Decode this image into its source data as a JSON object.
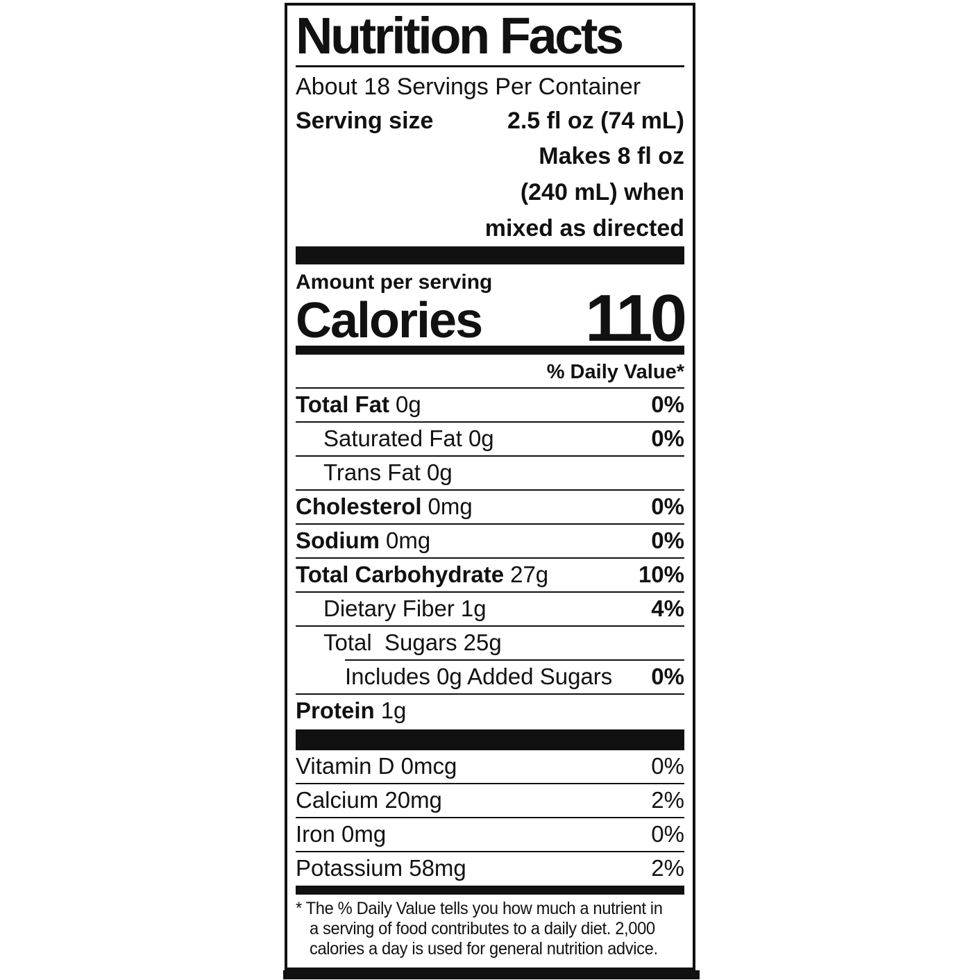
{
  "colors": {
    "ink": "#111111",
    "background": "#ffffff"
  },
  "label": {
    "title": "Nutrition Facts",
    "servings_per_container": "About 18 Servings Per Container",
    "serving_size_label": "Serving size",
    "serving_size_value": "2.5 fl oz (74 mL)",
    "serving_note_lines": [
      "Makes 8 fl oz",
      "(240 mL) when",
      "mixed as directed"
    ],
    "amount_per_serving": "Amount per serving",
    "calories_label": "Calories",
    "calories_value": "110",
    "daily_value_header": "% Daily Value*",
    "nutrient_rows": [
      {
        "name": "Total Fat",
        "amount": "0g",
        "percent": "0%"
      },
      {
        "name": "Saturated Fat",
        "amount": "0g",
        "percent": "0%"
      },
      {
        "name": "Trans Fat",
        "amount": "0g",
        "percent": ""
      },
      {
        "name": "Cholesterol",
        "amount": "0mg",
        "percent": "0%"
      },
      {
        "name": "Sodium",
        "amount": "0mg",
        "percent": "0%"
      },
      {
        "name": "Total Carbohydrate",
        "amount": "27g",
        "percent": "10%"
      },
      {
        "name": "Dietary Fiber",
        "amount": "1g",
        "percent": "4%"
      },
      {
        "name": "Total  Sugars",
        "amount": "25g",
        "percent": ""
      },
      {
        "name": "Includes 0g Added Sugars",
        "amount": "",
        "percent": "0%"
      },
      {
        "name": "Protein",
        "amount": "1g",
        "percent": ""
      }
    ],
    "vitamin_rows": [
      {
        "text": "Vitamin D 0mcg",
        "percent": "0%"
      },
      {
        "text": "Calcium 20mg",
        "percent": "2%"
      },
      {
        "text": "Iron 0mg",
        "percent": "0%"
      },
      {
        "text": "Potassium 58mg",
        "percent": "2%"
      }
    ],
    "footnote_lines": [
      "* The % Daily Value tells you how much a nutrient in",
      "a serving of food contributes to a daily diet. 2,000",
      "calories a day is used for general nutrition advice."
    ]
  }
}
